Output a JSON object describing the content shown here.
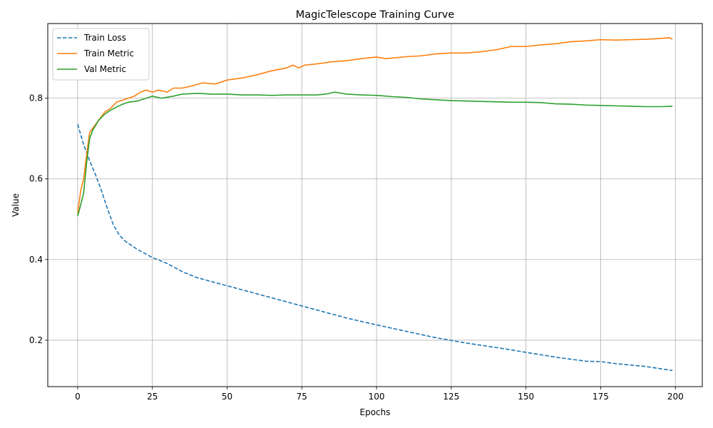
{
  "chart_data": {
    "type": "line",
    "title": "MagicTelescope Training Curve",
    "xlabel": "Epochs",
    "ylabel": "Value",
    "xlim": [
      -10,
      209
    ],
    "ylim": [
      0.085,
      0.985
    ],
    "xticks": [
      0,
      25,
      50,
      75,
      100,
      125,
      150,
      175,
      200
    ],
    "yticks": [
      0.2,
      0.4,
      0.6,
      0.8
    ],
    "grid": true,
    "legend_position": "upper-left",
    "series": [
      {
        "name": "Train Loss",
        "color": "#1f77b4",
        "style": "dashed",
        "points": [
          [
            0,
            0.735
          ],
          [
            2,
            0.685
          ],
          [
            4,
            0.645
          ],
          [
            6,
            0.61
          ],
          [
            8,
            0.57
          ],
          [
            10,
            0.525
          ],
          [
            12,
            0.485
          ],
          [
            14,
            0.46
          ],
          [
            16,
            0.445
          ],
          [
            20,
            0.425
          ],
          [
            25,
            0.405
          ],
          [
            30,
            0.39
          ],
          [
            35,
            0.37
          ],
          [
            40,
            0.355
          ],
          [
            45,
            0.345
          ],
          [
            50,
            0.335
          ],
          [
            60,
            0.315
          ],
          [
            70,
            0.295
          ],
          [
            80,
            0.275
          ],
          [
            90,
            0.255
          ],
          [
            100,
            0.238
          ],
          [
            110,
            0.222
          ],
          [
            120,
            0.206
          ],
          [
            130,
            0.193
          ],
          [
            140,
            0.182
          ],
          [
            150,
            0.17
          ],
          [
            160,
            0.158
          ],
          [
            170,
            0.148
          ],
          [
            175,
            0.147
          ],
          [
            180,
            0.142
          ],
          [
            190,
            0.135
          ],
          [
            199,
            0.125
          ]
        ]
      },
      {
        "name": "Train Metric",
        "color": "#ff7f0e",
        "style": "solid",
        "points": [
          [
            0,
            0.515
          ],
          [
            1,
            0.57
          ],
          [
            2,
            0.6
          ],
          [
            3,
            0.66
          ],
          [
            4,
            0.715
          ],
          [
            5,
            0.725
          ],
          [
            7,
            0.745
          ],
          [
            9,
            0.765
          ],
          [
            11,
            0.775
          ],
          [
            13,
            0.79
          ],
          [
            15,
            0.795
          ],
          [
            17,
            0.8
          ],
          [
            19,
            0.805
          ],
          [
            21,
            0.815
          ],
          [
            23,
            0.82
          ],
          [
            25,
            0.815
          ],
          [
            27,
            0.82
          ],
          [
            30,
            0.815
          ],
          [
            32,
            0.825
          ],
          [
            35,
            0.825
          ],
          [
            38,
            0.83
          ],
          [
            42,
            0.838
          ],
          [
            46,
            0.835
          ],
          [
            50,
            0.845
          ],
          [
            55,
            0.85
          ],
          [
            60,
            0.858
          ],
          [
            65,
            0.868
          ],
          [
            70,
            0.875
          ],
          [
            72,
            0.882
          ],
          [
            74,
            0.875
          ],
          [
            76,
            0.882
          ],
          [
            80,
            0.885
          ],
          [
            85,
            0.89
          ],
          [
            90,
            0.893
          ],
          [
            95,
            0.898
          ],
          [
            100,
            0.902
          ],
          [
            103,
            0.898
          ],
          [
            106,
            0.9
          ],
          [
            110,
            0.903
          ],
          [
            115,
            0.905
          ],
          [
            120,
            0.91
          ],
          [
            125,
            0.912
          ],
          [
            130,
            0.912
          ],
          [
            135,
            0.915
          ],
          [
            140,
            0.92
          ],
          [
            145,
            0.928
          ],
          [
            150,
            0.928
          ],
          [
            155,
            0.932
          ],
          [
            160,
            0.935
          ],
          [
            165,
            0.94
          ],
          [
            170,
            0.942
          ],
          [
            175,
            0.945
          ],
          [
            180,
            0.944
          ],
          [
            185,
            0.945
          ],
          [
            190,
            0.946
          ],
          [
            195,
            0.948
          ],
          [
            198,
            0.95
          ],
          [
            199,
            0.946
          ]
        ]
      },
      {
        "name": "Val Metric",
        "color": "#2ca02c",
        "style": "solid",
        "points": [
          [
            0,
            0.508
          ],
          [
            1,
            0.535
          ],
          [
            2,
            0.565
          ],
          [
            3,
            0.64
          ],
          [
            4,
            0.7
          ],
          [
            5,
            0.72
          ],
          [
            7,
            0.745
          ],
          [
            9,
            0.76
          ],
          [
            11,
            0.77
          ],
          [
            13,
            0.778
          ],
          [
            15,
            0.785
          ],
          [
            17,
            0.79
          ],
          [
            20,
            0.793
          ],
          [
            23,
            0.8
          ],
          [
            25,
            0.805
          ],
          [
            28,
            0.8
          ],
          [
            32,
            0.805
          ],
          [
            35,
            0.81
          ],
          [
            40,
            0.812
          ],
          [
            45,
            0.81
          ],
          [
            50,
            0.81
          ],
          [
            55,
            0.808
          ],
          [
            60,
            0.808
          ],
          [
            65,
            0.807
          ],
          [
            70,
            0.808
          ],
          [
            75,
            0.808
          ],
          [
            80,
            0.808
          ],
          [
            83,
            0.81
          ],
          [
            86,
            0.815
          ],
          [
            90,
            0.81
          ],
          [
            95,
            0.808
          ],
          [
            100,
            0.807
          ],
          [
            105,
            0.804
          ],
          [
            110,
            0.802
          ],
          [
            115,
            0.798
          ],
          [
            120,
            0.796
          ],
          [
            125,
            0.794
          ],
          [
            130,
            0.793
          ],
          [
            135,
            0.792
          ],
          [
            140,
            0.791
          ],
          [
            145,
            0.79
          ],
          [
            150,
            0.79
          ],
          [
            155,
            0.789
          ],
          [
            160,
            0.786
          ],
          [
            165,
            0.785
          ],
          [
            170,
            0.783
          ],
          [
            175,
            0.782
          ],
          [
            180,
            0.781
          ],
          [
            185,
            0.78
          ],
          [
            190,
            0.779
          ],
          [
            195,
            0.779
          ],
          [
            199,
            0.78
          ]
        ]
      }
    ]
  }
}
